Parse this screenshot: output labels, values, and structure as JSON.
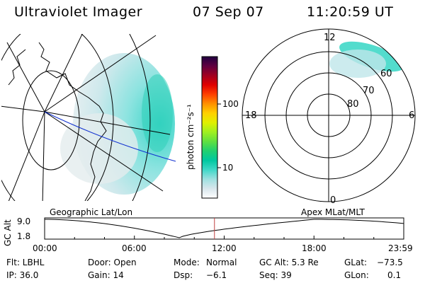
{
  "header": {
    "instrument": "Ultraviolet Imager",
    "date": "07 Sep 07",
    "time": "11:20:59 UT"
  },
  "colorbar": {
    "unit_label": "photon cm⁻²s⁻¹",
    "tick_labels": [
      "100",
      "10"
    ],
    "scale": "log",
    "colors": [
      "#ffffff",
      "#d8e6ec",
      "#9fe0e0",
      "#40d8c8",
      "#00c8a0",
      "#20d070",
      "#60e040",
      "#a0f020",
      "#e0f000",
      "#ffd000",
      "#ff9000",
      "#ff4000",
      "#e00000",
      "#a00020",
      "#600040",
      "#200040"
    ]
  },
  "left_panel": {
    "caption": "Geographic Lat/Lon",
    "line_color": "#1030d0"
  },
  "right_panel": {
    "caption": "Apex MLat/MLT",
    "mlt_labels": {
      "top": "12",
      "left": "18",
      "right": "6",
      "bottom": "0"
    },
    "mlat_labels": [
      "60",
      "70",
      "80"
    ]
  },
  "timeline": {
    "y_label": "GC Alt",
    "y_ticks": [
      "9.0",
      "1.8"
    ],
    "x_ticks": [
      "00:00",
      "06:00",
      "12:00",
      "18:00",
      "23:59"
    ],
    "marker_time_hours": 11.35,
    "marker_color": "#c04040"
  },
  "info": {
    "flt": "Flt: LBHL",
    "door": "Door: Open",
    "mode_label": "Mode:",
    "mode_value": "Normal",
    "gc_alt": "GC Alt: 5.3 Re",
    "glat_label": "GLat:",
    "glat_value": "−73.5",
    "ip": "IP: 36.0",
    "gain": "Gain: 14",
    "dsp_label": "Dsp:",
    "dsp_value": "−6.1",
    "seq": "Seq: 39",
    "glon_label": "GLon:",
    "glon_value": "0.1"
  }
}
